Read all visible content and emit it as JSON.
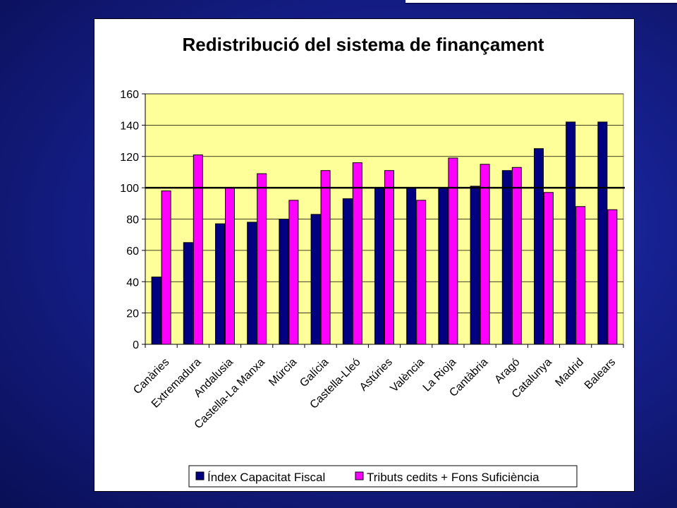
{
  "chart_data": {
    "type": "bar",
    "title": "Redistribució del sistema de finançament",
    "categories": [
      "Canàries",
      "Extremadura",
      "Andalusia",
      "Castella-La Manxa",
      "Múrcia",
      "Galícia",
      "Castella-Lleó",
      "Astúries",
      "València",
      "La Rioja",
      "Cantàbria",
      "Aragó",
      "Catalunya",
      "Madrid",
      "Balears"
    ],
    "series": [
      {
        "name": "Índex Capacitat Fiscal",
        "color": "#000080",
        "values": [
          43,
          65,
          77,
          78,
          80,
          83,
          93,
          100,
          100,
          100,
          101,
          111,
          125,
          142,
          142
        ]
      },
      {
        "name": "Tributs cedits + Fons Suficiència",
        "color": "#ff00ff",
        "values": [
          98,
          121,
          100,
          109,
          92,
          111,
          116,
          111,
          92,
          119,
          115,
          113,
          97,
          88,
          86
        ]
      }
    ],
    "reference_line": 100,
    "ylim": [
      0,
      160
    ],
    "yticks": [
      0,
      20,
      40,
      60,
      80,
      100,
      120,
      140,
      160
    ],
    "plot_background": "#ffff99",
    "grid": true,
    "legend_position": "bottom"
  }
}
